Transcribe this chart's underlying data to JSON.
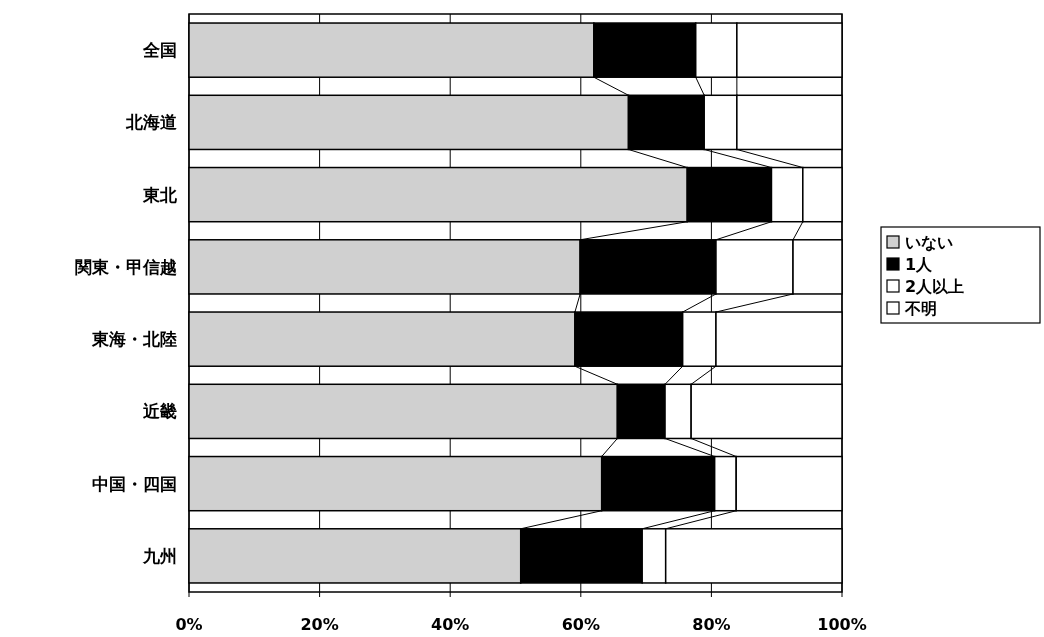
{
  "chart_data": {
    "type": "bar",
    "orientation": "horizontal",
    "stacked": true,
    "categories": [
      "全国",
      "北海道",
      "東北",
      "関東・甲信越",
      "東海・北陸",
      "近畿",
      "中国・四国",
      "九州"
    ],
    "series": [
      {
        "name": "いない",
        "color": "#d0d0d0",
        "values": [
          62.0,
          67.3,
          76.3,
          59.9,
          59.1,
          65.6,
          63.2,
          50.8
        ]
      },
      {
        "name": "1人",
        "color": "#000000",
        "values": [
          15.6,
          11.6,
          12.9,
          20.8,
          16.5,
          7.3,
          17.3,
          18.6
        ]
      },
      {
        "name": "2人以上",
        "color": "#ffffff",
        "values": [
          6.3,
          5.0,
          4.8,
          11.8,
          5.1,
          4.0,
          3.3,
          3.6
        ]
      },
      {
        "name": "不明",
        "color": "#ffffff",
        "values": [
          16.1,
          16.1,
          6.0,
          7.5,
          19.3,
          23.1,
          16.2,
          27.0
        ]
      }
    ],
    "xlim": [
      0,
      100
    ],
    "xticks": [
      {
        "value": 0,
        "label": "0%"
      },
      {
        "value": 20,
        "label": "20%"
      },
      {
        "value": 40,
        "label": "40%"
      },
      {
        "value": 60,
        "label": "60%"
      },
      {
        "value": 80,
        "label": "80%"
      },
      {
        "value": 100,
        "label": "100%"
      }
    ],
    "grid": "x",
    "legend": "right"
  }
}
